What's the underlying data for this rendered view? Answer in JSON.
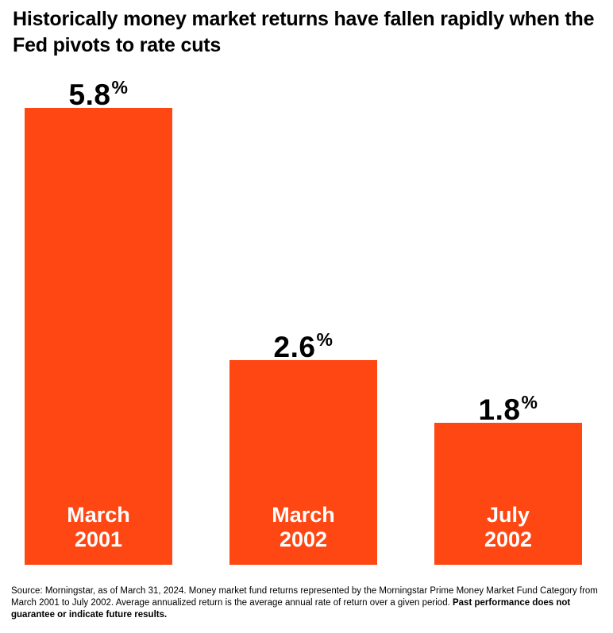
{
  "title": "Historically money market returns have fallen rapidly when the Fed pivots to rate cuts",
  "chart_data": {
    "type": "bar",
    "title": "Historically money market returns have fallen rapidly when the Fed pivots to rate cuts",
    "categories": [
      "March\n2001",
      "March\n2002",
      "July\n2002"
    ],
    "values": [
      5.8,
      2.6,
      1.8
    ],
    "value_labels": [
      "5.8",
      "2.6",
      "1.8"
    ],
    "unit": "%",
    "ylim": [
      0,
      5.8
    ],
    "grid": false,
    "legend": "none",
    "bar_color": "#ff4714",
    "category_label_color": "#ffffff"
  },
  "footnote": {
    "text": "Source: Morningstar, as of March 31, 2024. Money market fund returns represented by the Morningstar Prime Money Market Fund Category from March 2001 to July 2002. Average annualized return is the average annual rate of return over a given period. ",
    "bold_text": "Past performance does not guarantee or indicate future results."
  }
}
